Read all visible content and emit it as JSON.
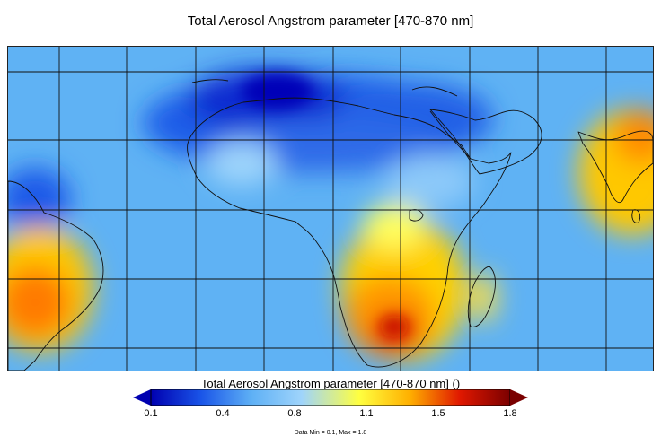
{
  "title": "Total Aerosol Angstrom parameter [470-870 nm]",
  "colorbar": {
    "title": "Total Aerosol Angstrom parameter [470-870 nm] ()",
    "ticks": [
      "0.1",
      "0.4",
      "0.8",
      "1.1",
      "1.5",
      "1.8"
    ],
    "min": 0.1,
    "max": 1.8,
    "colors": [
      "#0000b0",
      "#1a55e8",
      "#5eb0f5",
      "#9fd4fb",
      "#ffff40",
      "#ffb000",
      "#e01800",
      "#7a0000"
    ]
  },
  "footnote": "Data Min = 0.1, Max = 1.8"
}
